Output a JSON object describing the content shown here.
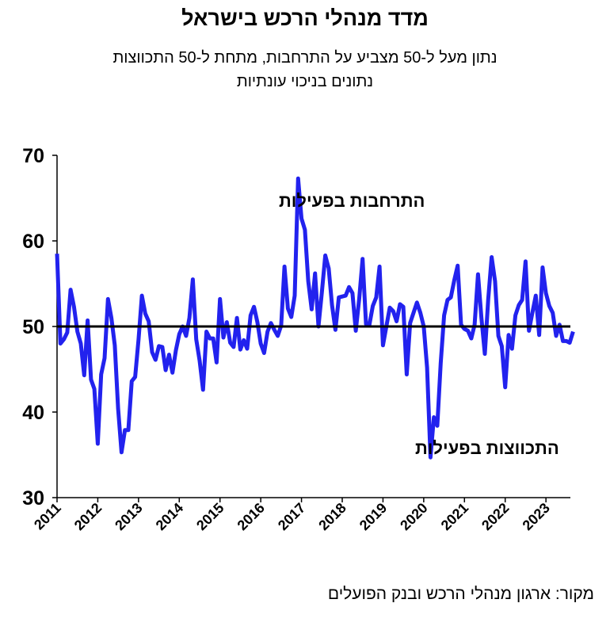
{
  "title": "מדד מנהלי הרכש בישראל",
  "subtitle_line1": "נתון מעל ל-50 מצביע על התרחבות, מתחת ל-50 התכווצות",
  "subtitle_line2": "נתונים בניכוי עונתיות",
  "source": "מקור: ארגון מנהלי הרכש ובנק הפועלים",
  "colors": {
    "series": "#2222ee",
    "reference_line": "#000000"
  },
  "chart_data": {
    "type": "line",
    "ylim": [
      30,
      70
    ],
    "yticks": [
      "30",
      "40",
      "50",
      "60",
      "70"
    ],
    "xlim": [
      2011,
      2023.6
    ],
    "xticks": [
      "2011",
      "2012",
      "2013",
      "2014",
      "2015",
      "2016",
      "2017",
      "2018",
      "2019",
      "2020",
      "2021",
      "2022",
      "2023"
    ],
    "reference_line": 50,
    "annotations": {
      "expansion": "התרחבות בפעילות",
      "contraction": "התכווצות בפעילות"
    },
    "series": [
      {
        "start": "2011-01",
        "frequency": "monthly",
        "values": [
          58.5,
          48.0,
          48.5,
          49.3,
          54.3,
          52.3,
          49.4,
          48.0,
          44.3,
          50.7,
          43.8,
          42.7,
          36.3,
          44.4,
          46.3,
          53.2,
          51.0,
          47.8,
          40.4,
          35.3,
          37.9,
          37.9,
          43.6,
          44.1,
          48.5,
          53.6,
          51.5,
          50.6,
          47.0,
          46.1,
          47.7,
          47.6,
          44.9,
          46.7,
          44.6,
          47.2,
          49.1,
          50.0,
          48.9,
          51.0,
          55.5,
          48.5,
          46.0,
          42.6,
          49.4,
          48.6,
          48.6,
          45.8,
          53.2,
          48.7,
          50.5,
          48.1,
          47.6,
          51.0,
          47.3,
          48.4,
          47.4,
          51.3,
          52.3,
          50.5,
          48.0,
          46.9,
          49.4,
          50.4,
          49.6,
          48.9,
          50.1,
          57.0,
          52.1,
          51.1,
          53.6,
          67.3,
          62.6,
          61.3,
          55.3,
          52.0,
          56.2,
          50.0,
          54.0,
          58.3,
          56.8,
          52.5,
          49.6,
          53.4,
          53.5,
          53.6,
          54.6,
          53.9,
          49.5,
          53.2,
          57.9,
          50.3,
          50.2,
          52.4,
          53.4,
          57.0,
          47.8,
          50.0,
          52.2,
          51.8,
          50.6,
          52.6,
          52.3,
          44.4,
          50.4,
          51.6,
          52.8,
          51.6,
          50.0,
          45.2,
          34.7,
          39.4,
          38.4,
          45.7,
          51.3,
          53.1,
          53.4,
          55.4,
          57.1,
          50.2,
          49.7,
          49.5,
          48.6,
          50.2,
          56.1,
          51.0,
          46.8,
          53.2,
          58.1,
          55.3,
          48.9,
          47.7,
          42.9,
          49.0,
          47.4,
          51.3,
          52.5,
          53.1,
          57.6,
          49.5,
          51.6,
          53.6,
          49.0,
          56.9,
          53.9,
          52.4,
          51.6,
          48.9,
          50.2,
          48.3,
          48.3,
          48.1,
          49.4
        ]
      }
    ]
  }
}
